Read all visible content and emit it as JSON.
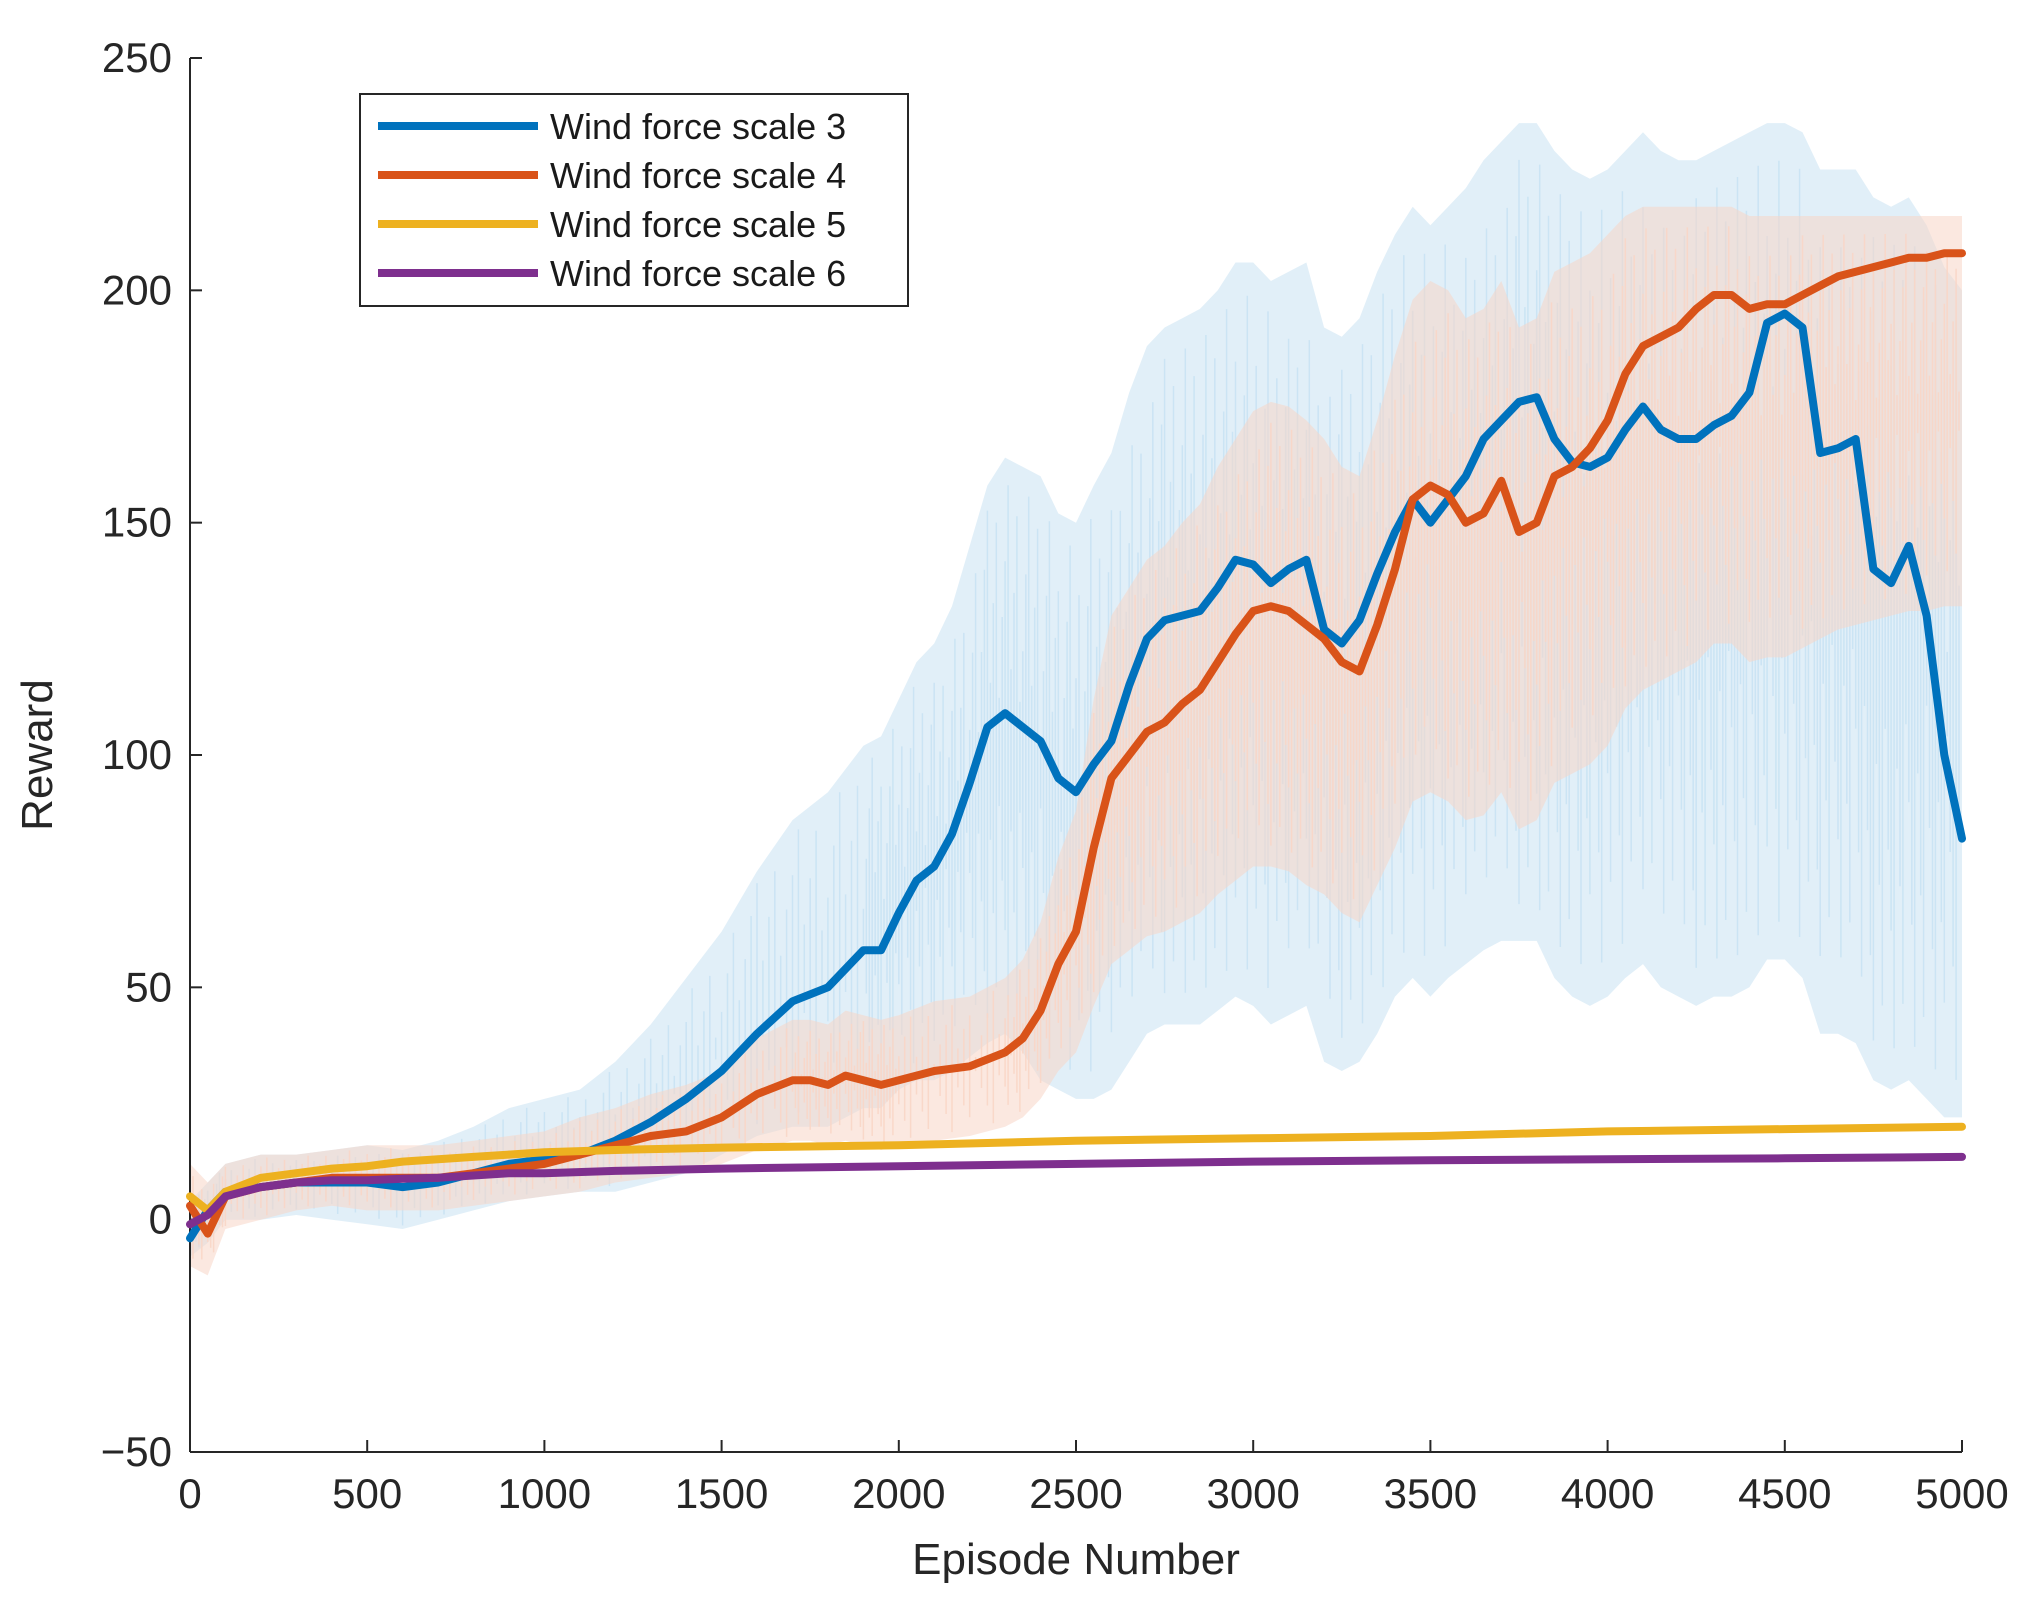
{
  "chart_data": {
    "type": "line",
    "title": "",
    "xlabel": "Episode Number",
    "ylabel": "Reward",
    "xlim": [
      0,
      5000
    ],
    "ylim": [
      -50,
      250
    ],
    "xticks": [
      0,
      500,
      1000,
      1500,
      2000,
      2500,
      3000,
      3500,
      4000,
      4500,
      5000
    ],
    "yticks": [
      -50,
      0,
      50,
      100,
      150,
      200,
      250
    ],
    "ytick_labels": [
      "−50",
      "0",
      "50",
      "100",
      "150",
      "200",
      "250"
    ],
    "grid": false,
    "legend_position": "top-left",
    "series": [
      {
        "name": "Wind force scale 3",
        "color": "#0072BD",
        "band_color": "#c9e2f3",
        "x": [
          0,
          50,
          100,
          200,
          300,
          400,
          500,
          600,
          700,
          800,
          900,
          1000,
          1100,
          1200,
          1300,
          1400,
          1500,
          1600,
          1700,
          1800,
          1900,
          1950,
          2000,
          2050,
          2100,
          2150,
          2200,
          2250,
          2300,
          2350,
          2400,
          2450,
          2500,
          2550,
          2600,
          2650,
          2700,
          2750,
          2800,
          2850,
          2900,
          2950,
          3000,
          3050,
          3100,
          3150,
          3200,
          3250,
          3300,
          3350,
          3400,
          3450,
          3500,
          3550,
          3600,
          3650,
          3700,
          3750,
          3800,
          3850,
          3900,
          3950,
          4000,
          4050,
          4100,
          4150,
          4200,
          4250,
          4300,
          4350,
          4400,
          4450,
          4500,
          4550,
          4600,
          4650,
          4700,
          4750,
          4800,
          4850,
          4900,
          4950,
          5000
        ],
        "y": [
          -4,
          2,
          6,
          7,
          8,
          8,
          8,
          7,
          8,
          10,
          12,
          13,
          14,
          17,
          21,
          26,
          32,
          40,
          47,
          50,
          58,
          58,
          66,
          73,
          76,
          83,
          94,
          106,
          109,
          106,
          103,
          95,
          92,
          98,
          103,
          115,
          125,
          129,
          130,
          131,
          136,
          142,
          141,
          137,
          140,
          142,
          127,
          124,
          129,
          139,
          148,
          155,
          150,
          155,
          160,
          168,
          172,
          176,
          177,
          168,
          163,
          162,
          164,
          170,
          175,
          170,
          168,
          168,
          171,
          173,
          178,
          193,
          195,
          192,
          165,
          166,
          168,
          140,
          137,
          145,
          130,
          100,
          82
        ],
        "band_low": [
          -8,
          -5,
          0,
          0,
          1,
          0,
          -1,
          -2,
          0,
          2,
          4,
          5,
          6,
          6,
          8,
          10,
          14,
          18,
          20,
          20,
          24,
          24,
          28,
          30,
          30,
          32,
          35,
          38,
          40,
          36,
          30,
          28,
          26,
          26,
          28,
          34,
          40,
          42,
          42,
          42,
          45,
          48,
          46,
          42,
          44,
          46,
          34,
          32,
          34,
          40,
          48,
          52,
          48,
          52,
          55,
          58,
          60,
          60,
          60,
          52,
          48,
          46,
          48,
          52,
          55,
          50,
          48,
          46,
          48,
          48,
          50,
          56,
          56,
          52,
          40,
          40,
          38,
          30,
          28,
          30,
          26,
          22,
          22
        ],
        "band_high": [
          4,
          8,
          12,
          14,
          14,
          15,
          16,
          15,
          17,
          20,
          24,
          26,
          28,
          34,
          42,
          52,
          62,
          75,
          86,
          92,
          102,
          104,
          112,
          120,
          124,
          132,
          145,
          158,
          164,
          162,
          160,
          152,
          150,
          158,
          165,
          178,
          188,
          192,
          194,
          196,
          200,
          206,
          206,
          202,
          204,
          206,
          192,
          190,
          194,
          204,
          212,
          218,
          214,
          218,
          222,
          228,
          232,
          236,
          236,
          230,
          226,
          224,
          226,
          230,
          234,
          230,
          228,
          228,
          230,
          232,
          234,
          236,
          236,
          234,
          226,
          226,
          226,
          220,
          218,
          220,
          214,
          205,
          200
        ]
      },
      {
        "name": "Wind force scale 4",
        "color": "#D95319",
        "band_color": "#f8d6c6",
        "x": [
          0,
          50,
          100,
          200,
          300,
          400,
          500,
          600,
          700,
          800,
          900,
          1000,
          1100,
          1200,
          1300,
          1400,
          1500,
          1600,
          1700,
          1750,
          1800,
          1850,
          1900,
          1950,
          2000,
          2100,
          2200,
          2300,
          2350,
          2400,
          2450,
          2500,
          2550,
          2600,
          2650,
          2700,
          2750,
          2800,
          2850,
          2900,
          2950,
          3000,
          3050,
          3100,
          3150,
          3200,
          3250,
          3300,
          3350,
          3400,
          3450,
          3500,
          3550,
          3600,
          3650,
          3700,
          3750,
          3800,
          3850,
          3900,
          3950,
          4000,
          4050,
          4100,
          4150,
          4200,
          4250,
          4300,
          4350,
          4400,
          4450,
          4500,
          4550,
          4600,
          4650,
          4700,
          4750,
          4800,
          4850,
          4900,
          4950,
          5000
        ],
        "y": [
          3,
          -3,
          5,
          7,
          8,
          9,
          9,
          9,
          9,
          10,
          11,
          12,
          14,
          16,
          18,
          19,
          22,
          27,
          30,
          30,
          29,
          31,
          30,
          29,
          30,
          32,
          33,
          36,
          39,
          45,
          55,
          62,
          80,
          95,
          100,
          105,
          107,
          111,
          114,
          120,
          126,
          131,
          132,
          131,
          128,
          125,
          120,
          118,
          128,
          140,
          155,
          158,
          156,
          150,
          152,
          159,
          148,
          150,
          160,
          162,
          166,
          172,
          182,
          188,
          190,
          192,
          196,
          199,
          199,
          196,
          197,
          197,
          199,
          201,
          203,
          204,
          205,
          206,
          207,
          207,
          208,
          208
        ],
        "band_low": [
          -10,
          -12,
          -2,
          0,
          2,
          3,
          2,
          2,
          2,
          3,
          4,
          5,
          6,
          8,
          9,
          10,
          12,
          15,
          17,
          17,
          16,
          17,
          16,
          15,
          16,
          17,
          18,
          20,
          22,
          26,
          32,
          36,
          46,
          55,
          58,
          61,
          62,
          64,
          66,
          70,
          73,
          76,
          76,
          75,
          72,
          70,
          66,
          64,
          72,
          80,
          90,
          92,
          90,
          86,
          87,
          92,
          84,
          86,
          94,
          96,
          98,
          102,
          110,
          114,
          116,
          118,
          120,
          124,
          124,
          120,
          121,
          121,
          123,
          125,
          127,
          128,
          129,
          130,
          131,
          131,
          132,
          132
        ],
        "band_high": [
          12,
          8,
          12,
          14,
          14,
          15,
          16,
          16,
          16,
          17,
          18,
          19,
          22,
          24,
          27,
          29,
          32,
          39,
          43,
          43,
          42,
          45,
          44,
          43,
          44,
          47,
          48,
          52,
          56,
          64,
          78,
          88,
          112,
          130,
          136,
          142,
          145,
          150,
          154,
          162,
          168,
          174,
          176,
          175,
          172,
          168,
          162,
          160,
          172,
          186,
          198,
          202,
          200,
          194,
          196,
          202,
          192,
          194,
          204,
          206,
          208,
          212,
          216,
          218,
          218,
          218,
          218,
          218,
          218,
          216,
          216,
          216,
          216,
          216,
          216,
          216,
          216,
          216,
          216,
          216,
          216,
          216
        ]
      },
      {
        "name": "Wind force scale 5",
        "color": "#EDB120",
        "x": [
          0,
          50,
          100,
          200,
          300,
          400,
          500,
          600,
          700,
          800,
          900,
          1000,
          1200,
          1500,
          2000,
          2500,
          3000,
          3500,
          4000,
          4500,
          5000
        ],
        "y": [
          5,
          2,
          6,
          9,
          10,
          11,
          11.5,
          12.5,
          13,
          13.5,
          14,
          14.5,
          15,
          15.5,
          16,
          17,
          17.5,
          18,
          19,
          19.5,
          20
        ]
      },
      {
        "name": "Wind force scale 6",
        "color": "#7E2F8E",
        "x": [
          0,
          50,
          100,
          200,
          300,
          400,
          500,
          600,
          700,
          800,
          900,
          1000,
          1200,
          1500,
          2000,
          2500,
          3000,
          3500,
          4000,
          4500,
          5000
        ],
        "y": [
          -1,
          1,
          5,
          7,
          8,
          8.5,
          8.5,
          8.8,
          9,
          9.5,
          10,
          10,
          10.5,
          11,
          11.5,
          12,
          12.5,
          12.8,
          13,
          13.2,
          13.5
        ]
      }
    ]
  }
}
